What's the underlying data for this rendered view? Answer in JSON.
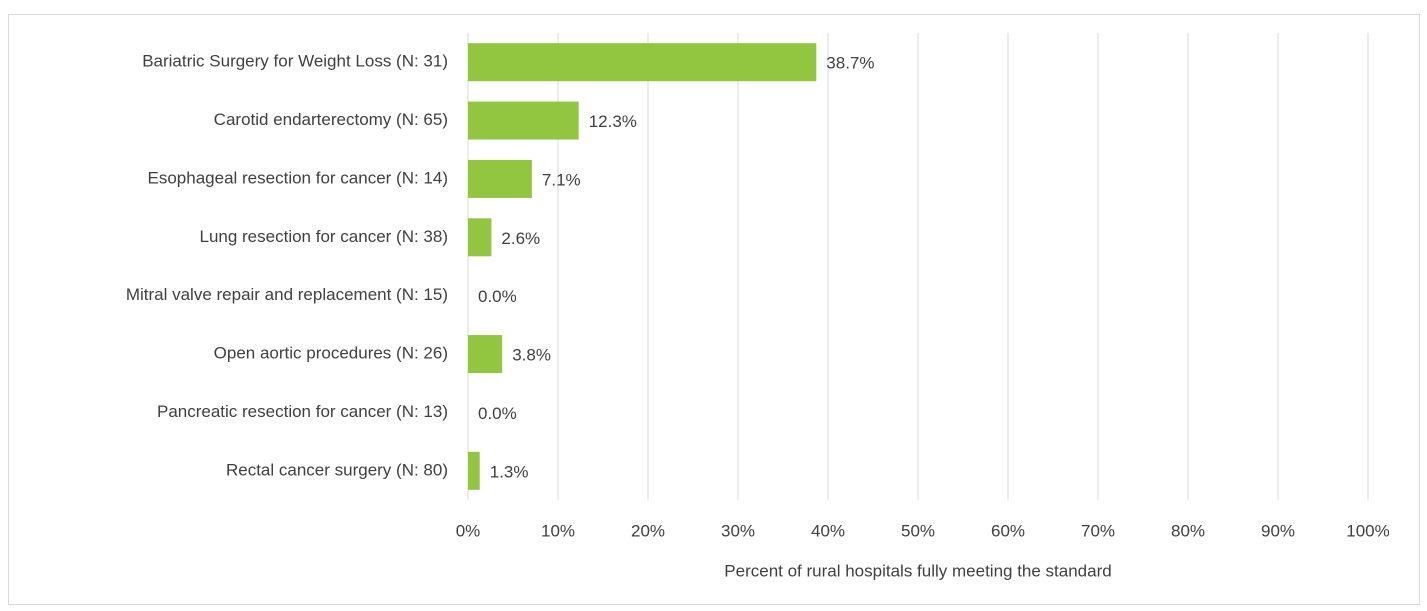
{
  "chart_data": {
    "type": "bar",
    "orientation": "horizontal",
    "categories": [
      "Bariatric Surgery for Weight Loss (N: 31)",
      "Carotid endarterectomy (N: 65)",
      "Esophageal resection for cancer (N: 14)",
      "Lung resection for cancer (N: 38)",
      "Mitral valve repair and replacement (N: 15)",
      "Open aortic procedures (N: 26)",
      "Pancreatic resection for cancer (N: 13)",
      "Rectal cancer surgery (N: 80)"
    ],
    "values": [
      38.7,
      12.3,
      7.1,
      2.6,
      0.0,
      3.8,
      0.0,
      1.3
    ],
    "value_labels": [
      "38.7%",
      "12.3%",
      "7.1%",
      "2.6%",
      "0.0%",
      "3.8%",
      "0.0%",
      "1.3%"
    ],
    "color": "#92c540",
    "xlabel": "Percent of rural hospitals fully meeting the standard",
    "xlim": [
      0,
      100
    ],
    "xticks": [
      {
        "value": 0,
        "label": "0%"
      },
      {
        "value": 10,
        "label": "10%"
      },
      {
        "value": 20,
        "label": "20%"
      },
      {
        "value": 30,
        "label": "30%"
      },
      {
        "value": 40,
        "label": "40%"
      },
      {
        "value": 50,
        "label": "50%"
      },
      {
        "value": 60,
        "label": "60%"
      },
      {
        "value": 70,
        "label": "70%"
      },
      {
        "value": 80,
        "label": "80%"
      },
      {
        "value": 90,
        "label": "90%"
      },
      {
        "value": 100,
        "label": "100%"
      }
    ],
    "grid": true
  }
}
